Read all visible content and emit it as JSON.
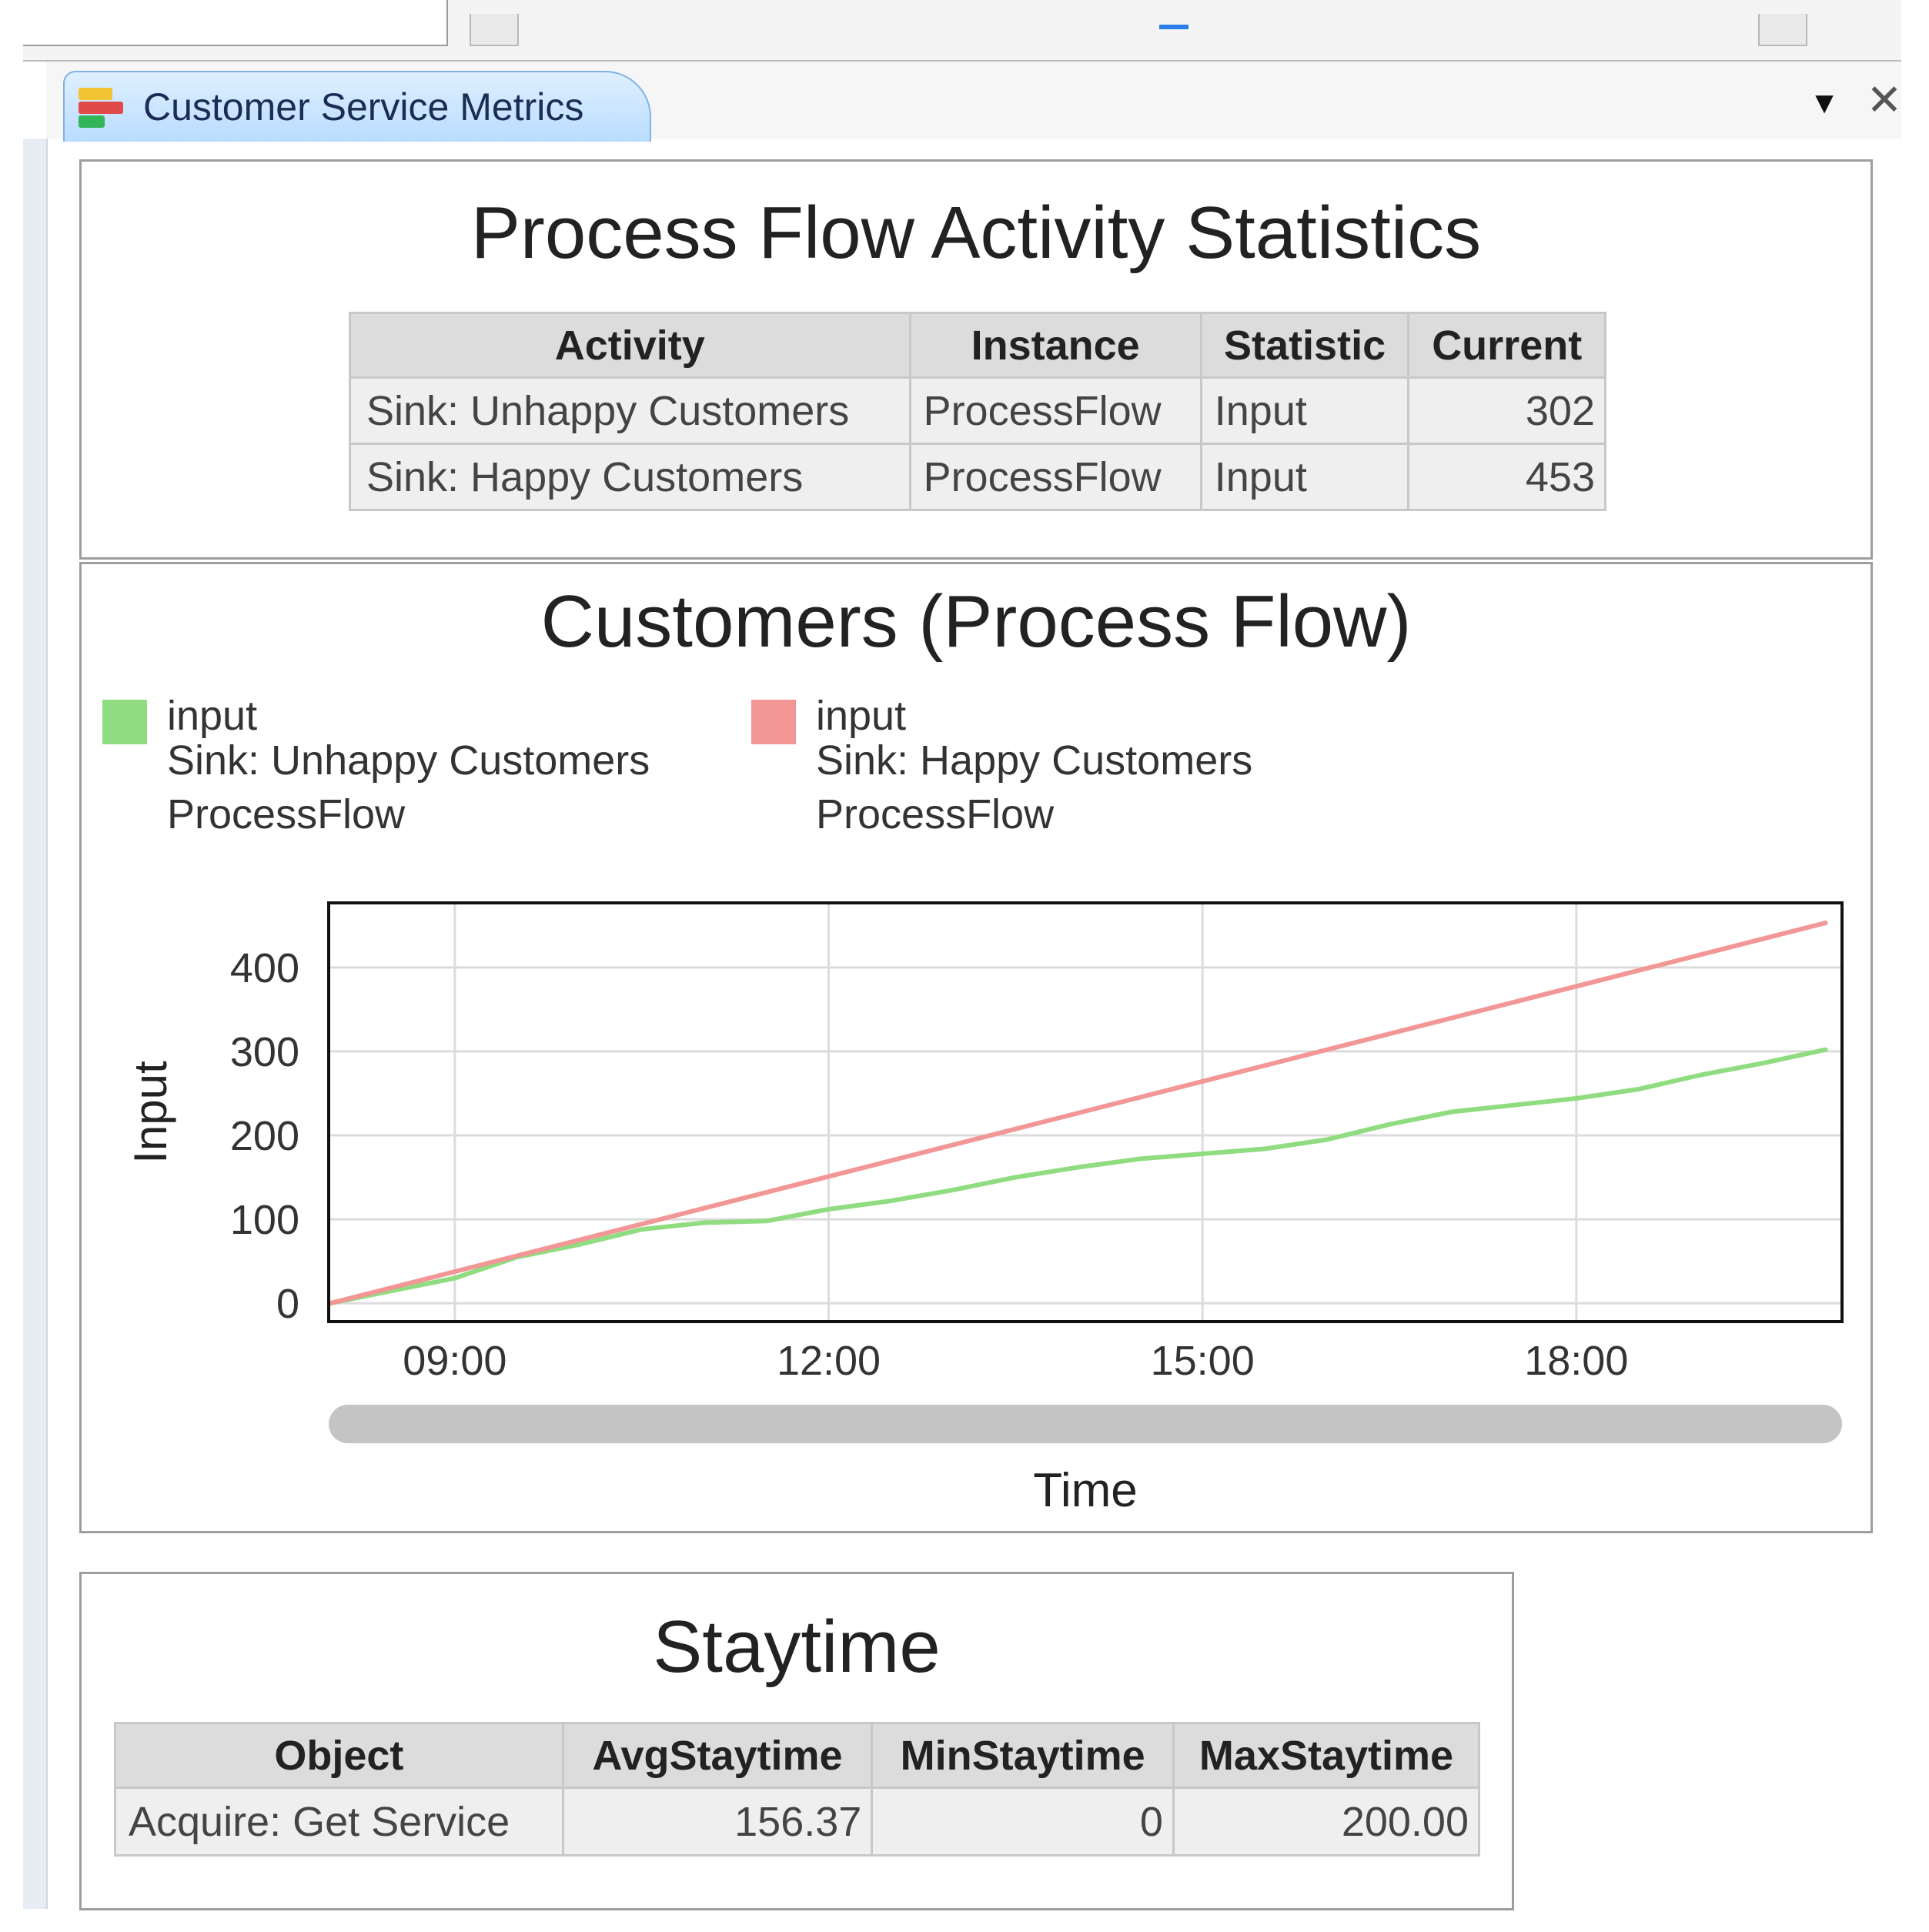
{
  "window": {
    "tab_title": "Customer Service Metrics",
    "tab_menu_glyph": "▼",
    "close_glyph": "✕"
  },
  "activity_stats": {
    "title": "Process Flow Activity Statistics",
    "columns": [
      "Activity",
      "Instance",
      "Statistic",
      "Current"
    ],
    "rows": [
      {
        "activity": "Sink: Unhappy Customers",
        "instance": "ProcessFlow",
        "statistic": "Input",
        "current": "302"
      },
      {
        "activity": "Sink: Happy Customers",
        "instance": "ProcessFlow",
        "statistic": "Input",
        "current": "453"
      }
    ]
  },
  "customers_chart": {
    "title": "Customers (Process Flow)",
    "legend": [
      {
        "line1": "input",
        "line2": "Sink: Unhappy Customers",
        "line3": "ProcessFlow",
        "color": "#90dc80"
      },
      {
        "line1": "input",
        "line2": "Sink: Happy Customers",
        "line3": "ProcessFlow",
        "color": "#f29696"
      }
    ],
    "xlabel": "Time",
    "ylabel": "Input",
    "x_ticks": [
      "09:00",
      "12:00",
      "15:00",
      "18:00"
    ],
    "y_ticks": [
      "0",
      "100",
      "200",
      "300",
      "400"
    ]
  },
  "chart_data": {
    "type": "line",
    "title": "Customers (Process Flow)",
    "xlabel": "Time",
    "ylabel": "Input",
    "x_unit": "hours",
    "xlim": [
      8.0,
      20.12
    ],
    "ylim": [
      -20,
      475
    ],
    "x_ticks": [
      9,
      12,
      15,
      18
    ],
    "y_ticks": [
      0,
      100,
      200,
      300,
      400
    ],
    "grid": true,
    "legend_position": "top-left",
    "series": [
      {
        "name": "input Sink: Unhappy Customers ProcessFlow",
        "color": "#90dc80",
        "x": [
          8.0,
          8.5,
          9.0,
          9.5,
          10.0,
          10.5,
          11.0,
          11.5,
          12.0,
          12.5,
          13.0,
          13.5,
          14.0,
          14.5,
          15.0,
          15.5,
          16.0,
          16.5,
          17.0,
          17.5,
          18.0,
          18.5,
          19.0,
          19.5,
          20.0
        ],
        "y": [
          0,
          15,
          30,
          55,
          70,
          88,
          96,
          98,
          112,
          122,
          135,
          150,
          162,
          172,
          178,
          184,
          195,
          213,
          228,
          236,
          244,
          255,
          272,
          286,
          302
        ]
      },
      {
        "name": "input Sink: Happy Customers ProcessFlow",
        "color": "#f29696",
        "x": [
          8.0,
          20.0
        ],
        "y": [
          0,
          453
        ]
      }
    ]
  },
  "staytime": {
    "title": "Staytime",
    "columns": [
      "Object",
      "AvgStaytime",
      "MinStaytime",
      "MaxStaytime"
    ],
    "rows": [
      {
        "object": "Acquire: Get Service",
        "avg": "156.37",
        "min": "0",
        "max": "200.00"
      }
    ]
  }
}
